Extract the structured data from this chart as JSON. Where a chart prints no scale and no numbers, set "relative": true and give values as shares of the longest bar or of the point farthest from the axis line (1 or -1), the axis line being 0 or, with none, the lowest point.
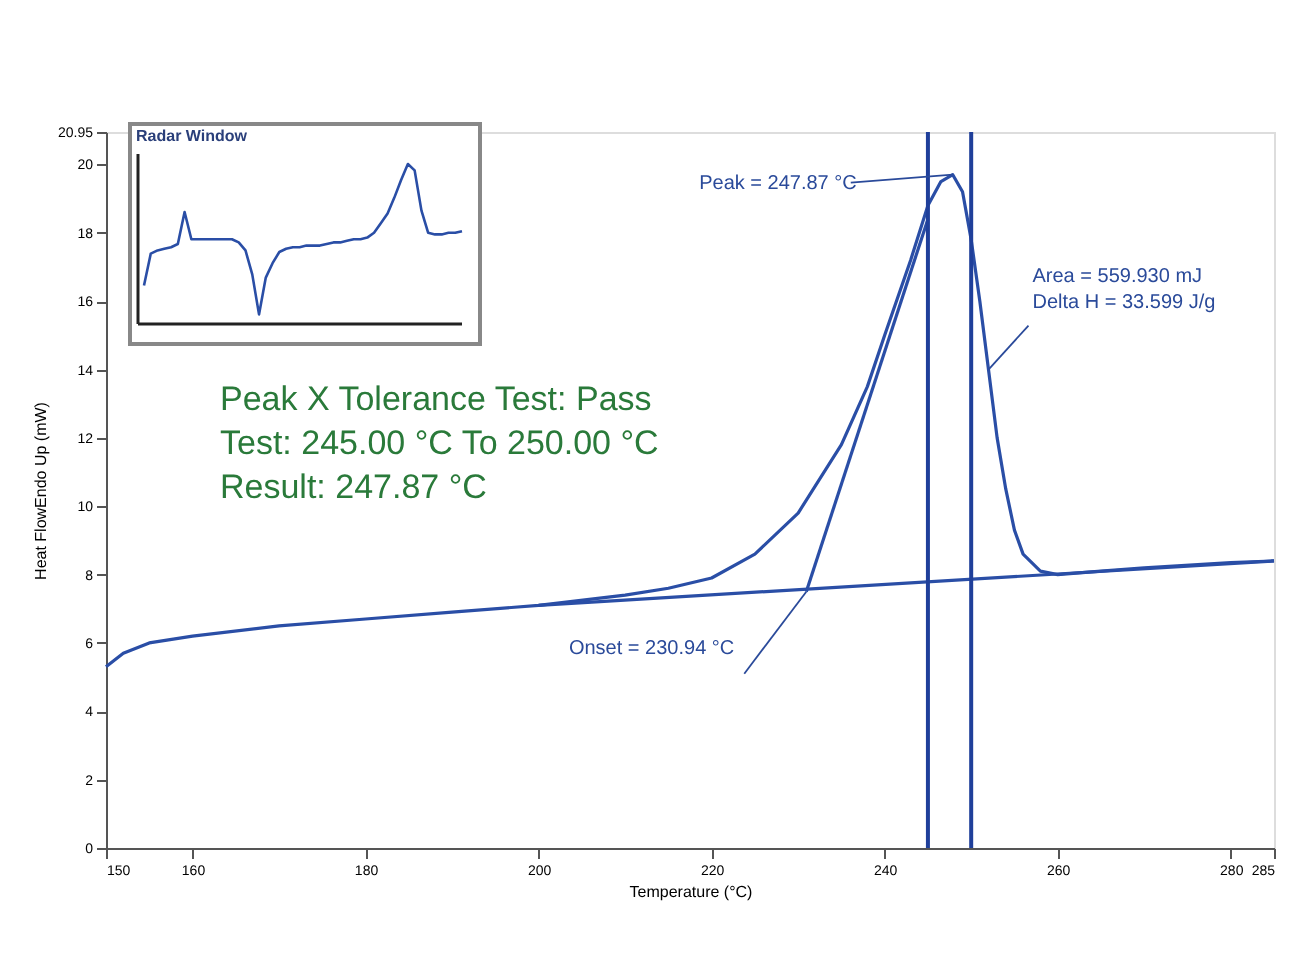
{
  "chart_data": [
    {
      "type": "line",
      "xlabel": "Temperature (°C)",
      "ylabel": "Heat FlowEndo Up (mW)",
      "xlim": [
        150,
        285
      ],
      "xticks": [
        150,
        160,
        180,
        200,
        220,
        240,
        260,
        280,
        285
      ],
      "ylim": [
        0,
        20.95
      ],
      "yticks": [
        0,
        2,
        4,
        6,
        8,
        10,
        12,
        14,
        16,
        18,
        20,
        20.95
      ],
      "grid": false,
      "line_style": "solid",
      "marker": "none",
      "series": [
        {
          "type": "line",
          "color": "#2a4ea6",
          "x": [
            150,
            152,
            155,
            160,
            170,
            180,
            190,
            200,
            210,
            215,
            220,
            225,
            230,
            235,
            238,
            240,
            243,
            245,
            246.5,
            247.87,
            249,
            250,
            251,
            252,
            253,
            254,
            255,
            256,
            258,
            260,
            265,
            270,
            280,
            285
          ],
          "values": [
            5.3,
            5.7,
            6.0,
            6.2,
            6.5,
            6.7,
            6.9,
            7.1,
            7.4,
            7.6,
            7.9,
            8.6,
            9.8,
            11.8,
            13.5,
            15.0,
            17.2,
            18.8,
            19.5,
            19.7,
            19.2,
            17.8,
            16.0,
            14.0,
            12.0,
            10.5,
            9.3,
            8.6,
            8.1,
            8.0,
            8.1,
            8.2,
            8.35,
            8.4
          ]
        },
        {
          "type": "line",
          "color": "#2a4ea6",
          "x": [
            200,
            285
          ],
          "values": [
            7.1,
            8.4
          ]
        },
        {
          "type": "line",
          "color": "#2a4ea6",
          "x": [
            230.94,
            245
          ],
          "values": [
            7.5,
            18.4
          ]
        }
      ],
      "ref_lines": [
        {
          "axis": "x",
          "value": 245,
          "color": "#1f3f9a"
        },
        {
          "axis": "x",
          "value": 250,
          "color": "#1f3f9a"
        }
      ],
      "annotations": [
        {
          "text": "Peak = 247.87 °C",
          "x": 247.87,
          "y": 19.7
        },
        {
          "text": "Onset = 230.94 °C",
          "x": 230.94,
          "y": 7.5
        },
        {
          "text": "Area = 559.930 mJ\nDelta H = 33.599 J/g",
          "x": 252,
          "y": 14.0
        },
        "Peak X Tolerance Test: Pass\nTest: 245.00 °C To 250.00 °C\nResult: 247.87 °C"
      ]
    },
    {
      "type": "line",
      "title": "Radar Window",
      "relative": true,
      "color": "#2a4ea6",
      "categories": [
        null,
        null,
        null,
        null,
        null,
        null,
        null,
        null,
        null,
        null,
        null,
        null,
        null,
        null,
        null,
        null,
        null,
        null,
        null,
        null,
        null,
        null,
        null,
        null,
        null,
        null,
        null,
        null,
        null,
        null,
        null,
        null,
        null,
        null,
        null,
        null,
        null,
        null,
        null,
        null,
        null,
        null,
        null,
        null,
        null,
        null,
        null,
        null
      ],
      "values": [
        0.24,
        0.44,
        0.46,
        0.47,
        0.48,
        0.5,
        0.7,
        0.53,
        0.53,
        0.53,
        0.53,
        0.53,
        0.53,
        0.53,
        0.51,
        0.46,
        0.31,
        0.06,
        0.29,
        0.38,
        0.45,
        0.47,
        0.48,
        0.48,
        0.49,
        0.49,
        0.49,
        0.5,
        0.51,
        0.51,
        0.52,
        0.53,
        0.53,
        0.54,
        0.57,
        0.63,
        0.69,
        0.79,
        0.9,
        1,
        0.96,
        0.71,
        0.57,
        0.56,
        0.56,
        0.57,
        0.57,
        0.58
      ]
    }
  ]
}
